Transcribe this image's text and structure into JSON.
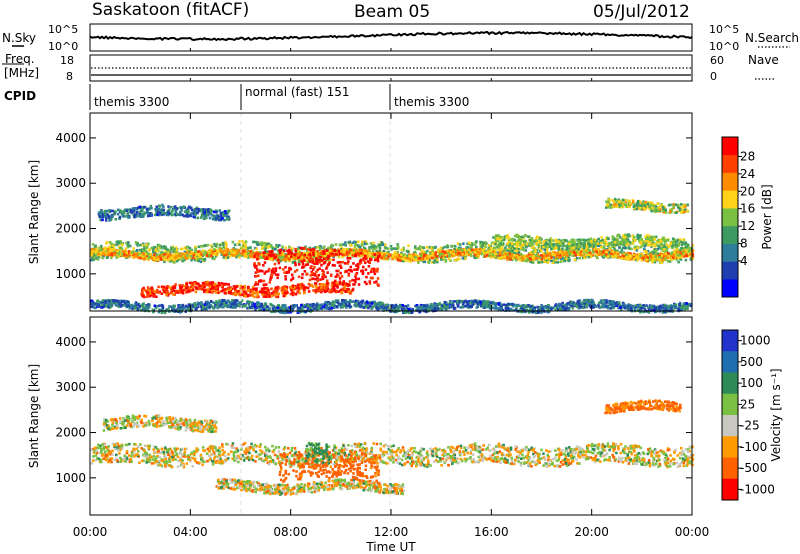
{
  "header": {
    "station": "Saskatoon (fitACF)",
    "beam": "Beam 05",
    "date": "05/Jul/2012"
  },
  "noise_panel": {
    "left_label": "N.Sky",
    "right_label": "N.Search",
    "tick_top": "10^5",
    "tick_bottom": "10^0",
    "right_tick_top": "10^5",
    "right_tick_bottom": "10^0"
  },
  "freq_panel": {
    "left_label_1": "Freq.",
    "left_label_2": "[MHz]",
    "right_label": "Nave",
    "left_ticks": [
      "18",
      "8"
    ],
    "right_ticks": [
      "60",
      "0"
    ]
  },
  "cpid": {
    "label": "CPID",
    "segments": [
      "themis 3300",
      "normal (fast) 151",
      "themis 3300"
    ]
  },
  "axes": {
    "ylabel": "Slant Range [km]",
    "xlabel": "Time UT",
    "yticks": [
      "4000",
      "3000",
      "2000",
      "1000"
    ],
    "xticks": [
      "00:00",
      "04:00",
      "08:00",
      "12:00",
      "16:00",
      "20:00",
      "00:00"
    ]
  },
  "colorbars": {
    "power": {
      "label": "Power [dB]",
      "ticks": [
        "28",
        "24",
        "20",
        "16",
        "12",
        "8",
        "4"
      ],
      "colors": [
        "#0000ff",
        "#1f3fb0",
        "#2e7d9a",
        "#3d9b62",
        "#7ac143",
        "#ffd21a",
        "#ff8c00",
        "#ff4000",
        "#ff0000"
      ]
    },
    "velocity": {
      "label": "Velocity [m s⁻¹]",
      "ticks": [
        "1000",
        "500",
        "100",
        "25",
        "-25",
        "-100",
        "-500",
        "-1000"
      ],
      "colors": [
        "#2233cc",
        "#1f6fb0",
        "#2e8b57",
        "#7ac143",
        "#c8c8c0",
        "#ff9a00",
        "#ff6000",
        "#ff0000"
      ]
    }
  },
  "chart_data": {
    "type": "heatmap",
    "title": "Saskatoon (fitACF)  Beam 05  05/Jul/2012",
    "xlabel": "Time UT",
    "ylabel": "Slant Range [km]",
    "xlim_hours": [
      0,
      24
    ],
    "ylim_km": [
      180,
      4550
    ],
    "panels": [
      {
        "name": "Power [dB]",
        "scale": [
          0,
          30
        ],
        "bands": [
          {
            "t0": 0.0,
            "t1": 24.0,
            "r": 1480,
            "w": 260,
            "v": 14
          },
          {
            "t0": 0.0,
            "t1": 24.0,
            "r": 1420,
            "w": 100,
            "v": 20
          },
          {
            "t0": 2.0,
            "t1": 10.5,
            "r": 650,
            "w": 160,
            "v": 26
          },
          {
            "t0": 6.5,
            "t1": 11.5,
            "r": 1150,
            "w": 520,
            "v": 29
          },
          {
            "t0": 0.3,
            "t1": 5.5,
            "r": 2350,
            "w": 160,
            "v": 8
          },
          {
            "t0": 16.0,
            "t1": 23.8,
            "r": 1700,
            "w": 160,
            "v": 15
          },
          {
            "t0": 20.5,
            "t1": 23.8,
            "r": 2500,
            "w": 140,
            "v": 16
          },
          {
            "t0": 0.0,
            "t1": 24.0,
            "r": 280,
            "w": 120,
            "v": 8
          }
        ]
      },
      {
        "name": "Velocity [m s-1]",
        "scale": [
          -1000,
          1000
        ],
        "bands": [
          {
            "t0": 0.0,
            "t1": 24.0,
            "r": 1500,
            "w": 300,
            "v": 0
          },
          {
            "t0": 5.0,
            "t1": 12.5,
            "r": 800,
            "w": 160,
            "v": 0
          },
          {
            "t0": 7.5,
            "t1": 11.5,
            "r": 1250,
            "w": 450,
            "v": -200
          },
          {
            "t0": 8.5,
            "t1": 9.5,
            "r": 1500,
            "w": 300,
            "v": 150
          },
          {
            "t0": 20.5,
            "t1": 23.5,
            "r": 2550,
            "w": 140,
            "v": -150
          },
          {
            "t0": 0.5,
            "t1": 5.0,
            "r": 2200,
            "w": 180,
            "v": 0
          }
        ]
      }
    ]
  }
}
